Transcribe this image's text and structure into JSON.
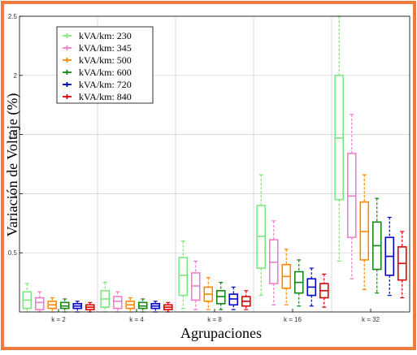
{
  "chart_data": {
    "type": "box",
    "title": "",
    "xlabel": "Agrupaciones",
    "ylabel": "Variación de Voltaje (%)",
    "ylim": [
      0,
      2.5
    ],
    "yticks": [
      0.5,
      1,
      1.5,
      2,
      2.5
    ],
    "ytick_labels": [
      "0.5",
      "1",
      "1.5",
      "2",
      "2.5"
    ],
    "grid": true,
    "legend_position": "top-left",
    "categories": [
      "k = 2",
      "k = 4",
      "k = 8",
      "k = 16",
      "k = 32"
    ],
    "series": [
      {
        "name": "kVA/km: 230",
        "color": "#7de87d",
        "boxes": [
          {
            "min": 0.0,
            "q1": 0.03,
            "median": 0.1,
            "q3": 0.17,
            "max": 0.24
          },
          {
            "min": 0.0,
            "q1": 0.04,
            "median": 0.11,
            "q3": 0.18,
            "max": 0.25
          },
          {
            "min": 0.03,
            "q1": 0.14,
            "median": 0.31,
            "q3": 0.46,
            "max": 0.6
          },
          {
            "min": 0.14,
            "q1": 0.37,
            "median": 0.64,
            "q3": 0.9,
            "max": 1.16
          },
          {
            "min": 0.43,
            "q1": 0.95,
            "median": 1.47,
            "q3": 2.0,
            "max": 2.5
          }
        ]
      },
      {
        "name": "kVA/km: 345",
        "color": "#ee7fc8",
        "boxes": [
          {
            "min": 0.0,
            "q1": 0.02,
            "median": 0.08,
            "q3": 0.12,
            "max": 0.17
          },
          {
            "min": 0.0,
            "q1": 0.03,
            "median": 0.09,
            "q3": 0.13,
            "max": 0.17
          },
          {
            "min": 0.02,
            "q1": 0.1,
            "median": 0.22,
            "q3": 0.33,
            "max": 0.43
          },
          {
            "min": 0.06,
            "q1": 0.24,
            "median": 0.42,
            "q3": 0.61,
            "max": 0.77
          },
          {
            "min": 0.28,
            "q1": 0.63,
            "median": 0.98,
            "q3": 1.34,
            "max": 1.67
          }
        ]
      },
      {
        "name": "kVA/km: 500",
        "color": "#ff8800",
        "boxes": [
          {
            "min": 0.0,
            "q1": 0.03,
            "median": 0.06,
            "q3": 0.09,
            "max": 0.12
          },
          {
            "min": 0.0,
            "q1": 0.03,
            "median": 0.06,
            "q3": 0.09,
            "max": 0.12
          },
          {
            "min": 0.02,
            "q1": 0.09,
            "median": 0.15,
            "q3": 0.21,
            "max": 0.29
          },
          {
            "min": 0.06,
            "q1": 0.2,
            "median": 0.3,
            "q3": 0.4,
            "max": 0.53
          },
          {
            "min": 0.19,
            "q1": 0.44,
            "median": 0.68,
            "q3": 0.93,
            "max": 1.16
          }
        ]
      },
      {
        "name": "kVA/km: 600",
        "color": "#118811",
        "boxes": [
          {
            "min": 0.0,
            "q1": 0.03,
            "median": 0.05,
            "q3": 0.08,
            "max": 0.11
          },
          {
            "min": 0.0,
            "q1": 0.03,
            "median": 0.05,
            "q3": 0.08,
            "max": 0.11
          },
          {
            "min": 0.02,
            "q1": 0.07,
            "median": 0.13,
            "q3": 0.18,
            "max": 0.25
          },
          {
            "min": 0.05,
            "q1": 0.16,
            "median": 0.25,
            "q3": 0.34,
            "max": 0.44
          },
          {
            "min": 0.16,
            "q1": 0.36,
            "median": 0.56,
            "q3": 0.76,
            "max": 0.96
          }
        ]
      },
      {
        "name": "kVA/km: 720",
        "color": "#0000cc",
        "boxes": [
          {
            "min": 0.0,
            "q1": 0.03,
            "median": 0.05,
            "q3": 0.07,
            "max": 0.09
          },
          {
            "min": 0.0,
            "q1": 0.03,
            "median": 0.05,
            "q3": 0.07,
            "max": 0.09
          },
          {
            "min": 0.02,
            "q1": 0.06,
            "median": 0.11,
            "q3": 0.15,
            "max": 0.21
          },
          {
            "min": 0.05,
            "q1": 0.14,
            "median": 0.21,
            "q3": 0.28,
            "max": 0.37
          },
          {
            "min": 0.14,
            "q1": 0.31,
            "median": 0.47,
            "q3": 0.63,
            "max": 0.8
          }
        ]
      },
      {
        "name": "kVA/km: 840",
        "color": "#dd0000",
        "boxes": [
          {
            "min": 0.0,
            "q1": 0.02,
            "median": 0.04,
            "q3": 0.06,
            "max": 0.08
          },
          {
            "min": 0.0,
            "q1": 0.02,
            "median": 0.04,
            "q3": 0.06,
            "max": 0.08
          },
          {
            "min": 0.02,
            "q1": 0.05,
            "median": 0.09,
            "q3": 0.13,
            "max": 0.18
          },
          {
            "min": 0.04,
            "q1": 0.12,
            "median": 0.18,
            "q3": 0.24,
            "max": 0.32
          },
          {
            "min": 0.12,
            "q1": 0.27,
            "median": 0.41,
            "q3": 0.55,
            "max": 0.68
          }
        ]
      }
    ]
  },
  "colors": {
    "frame_border": "#f07a3a",
    "grid": "#cccccc",
    "axis": "#000000"
  }
}
